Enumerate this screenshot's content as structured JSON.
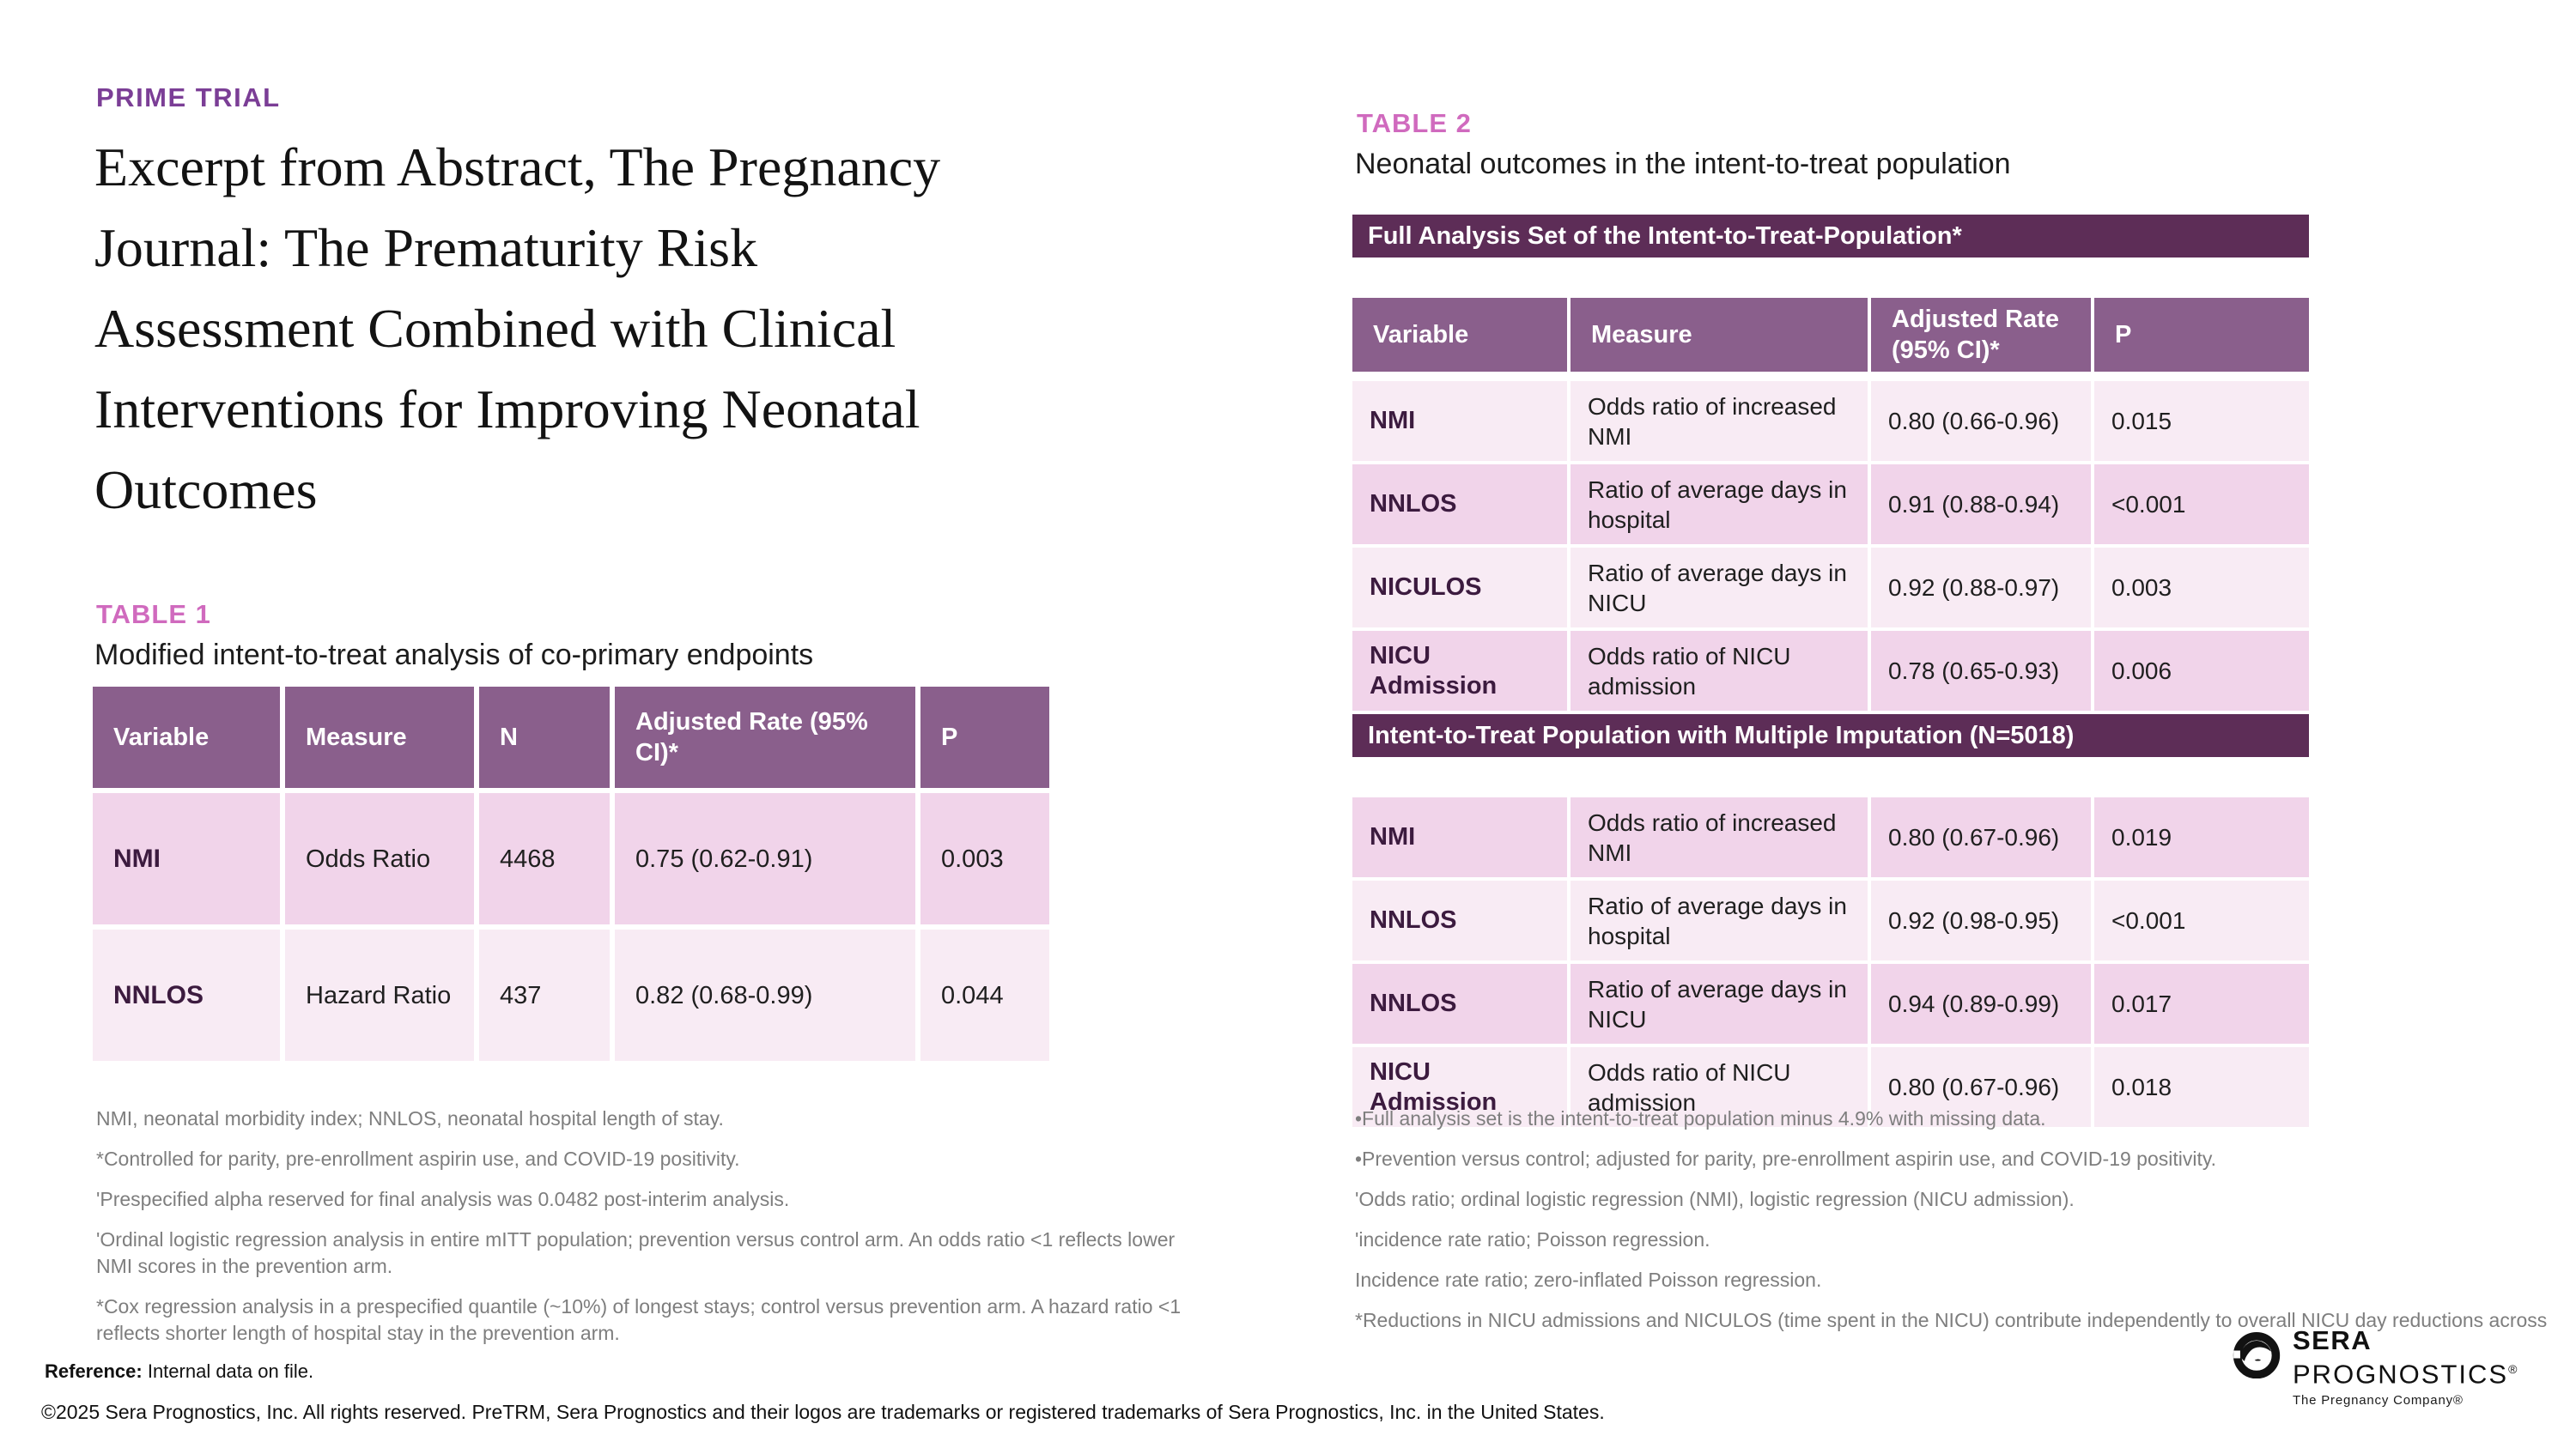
{
  "colors": {
    "eyebrow_purple": "#7b3e96",
    "table_label_pink": "#d06abe",
    "band_plum": "#5d2d57",
    "header_purple": "#8a5f8c",
    "row_light_pink": "#f8ebf4",
    "row_medium_pink": "#f1d4ea",
    "variable_plum": "#3c1b3f"
  },
  "page": {
    "eyebrow": "PRIME TRIAL",
    "title_lines": [
      "Excerpt from Abstract, The Pregnancy",
      "Journal: The Prematurity Risk",
      "Assessment Combined with Clinical",
      "Interventions for Improving Neonatal",
      "Outcomes"
    ]
  },
  "table1": {
    "label": "TABLE 1",
    "subtitle": "Modified intent-to-treat analysis of co-primary endpoints",
    "columns": [
      "Variable",
      "Measure",
      "N",
      "Adjusted Rate (95% CI)*",
      "P"
    ],
    "rows": [
      {
        "variable": "NMI",
        "measure": "Odds Ratio",
        "n": "4468",
        "rate": "0.75 (0.62-0.91)",
        "p": "0.003"
      },
      {
        "variable": "NNLOS",
        "measure": "Hazard Ratio",
        "n": "437",
        "rate": "0.82 (0.68-0.99)",
        "p": "0.044"
      }
    ],
    "footnotes": [
      "NMI, neonatal morbidity index; NNLOS, neonatal hospital length of stay.",
      "*Controlled for parity, pre-enrollment aspirin use, and COVID-19 positivity.",
      "'Prespecified alpha reserved for final analysis was 0.0482 post-interim analysis.",
      "'Ordinal logistic regression analysis in entire mITT population; prevention versus control arm. An odds ratio <1 reflects lower NMI scores in the prevention arm.",
      "*Cox regression analysis in a prespecified quantile (~10%) of longest stays; control versus prevention arm. A hazard ratio <1 reflects shorter length of hospital stay in the prevention arm."
    ]
  },
  "table2": {
    "label": "TABLE 2",
    "subtitle": "Neonatal outcomes in the intent-to-treat population",
    "columns": [
      "Variable",
      "Measure",
      "Adjusted Rate (95% CI)*",
      "P"
    ],
    "sections": [
      {
        "band": "Full Analysis Set of the Intent-to-Treat-Population*",
        "rows": [
          {
            "variable": "NMI",
            "measure": "Odds ratio of increased NMI",
            "rate": "0.80 (0.66-0.96)",
            "p": "0.015"
          },
          {
            "variable": "NNLOS",
            "measure": "Ratio of average days in hospital",
            "rate": "0.91 (0.88-0.94)",
            "p": "<0.001"
          },
          {
            "variable": "NICULOS",
            "measure": "Ratio of average days in NICU",
            "rate": "0.92 (0.88-0.97)",
            "p": "0.003"
          },
          {
            "variable": "NICU Admission",
            "measure": "Odds ratio of NICU admission",
            "rate": "0.78 (0.65-0.93)",
            "p": "0.006"
          }
        ]
      },
      {
        "band": "Intent-to-Treat Population with Multiple Imputation (N=5018)",
        "rows": [
          {
            "variable": "NMI",
            "measure": "Odds ratio of increased NMI",
            "rate": "0.80 (0.67-0.96)",
            "p": "0.019"
          },
          {
            "variable": "NNLOS",
            "measure": "Ratio of average days in hospital",
            "rate": "0.92 (0.98-0.95)",
            "p": "<0.001"
          },
          {
            "variable": "NNLOS",
            "measure": "Ratio of average days in NICU",
            "rate": "0.94 (0.89-0.99)",
            "p": "0.017"
          },
          {
            "variable": "NICU Admission",
            "measure": "Odds ratio of NICU admission",
            "rate": "0.80 (0.67-0.96)",
            "p": "0.018"
          }
        ]
      }
    ],
    "footnotes": [
      "•Full analysis set is the intent-to-treat population minus 4.9% with missing data.",
      "•Prevention versus control; adjusted for parity, pre-enrollment aspirin use, and COVID-19 positivity.",
      "'Odds ratio; ordinal logistic regression (NMI), logistic regression (NICU admission).",
      "'incidence rate ratio; Poisson regression.",
      "Incidence rate ratio; zero-inflated Poisson regression.",
      "*Reductions in NICU admissions and NICULOS (time spent in the NICU) contribute independently to overall NICU day reductions across"
    ]
  },
  "footer": {
    "reference_label": "Reference:",
    "reference_text": " Internal data on file.",
    "copyright": "©2025 Sera Prognostics, Inc. All rights reserved. PreTRM, Sera Prognostics and their logos are trademarks or registered trademarks of Sera Prognostics, Inc. in the United States."
  },
  "logo": {
    "name_top": "SERA",
    "name_bottom": "PROGNOSTICS",
    "reg": "®",
    "tagline": "The Pregnancy Company®"
  }
}
